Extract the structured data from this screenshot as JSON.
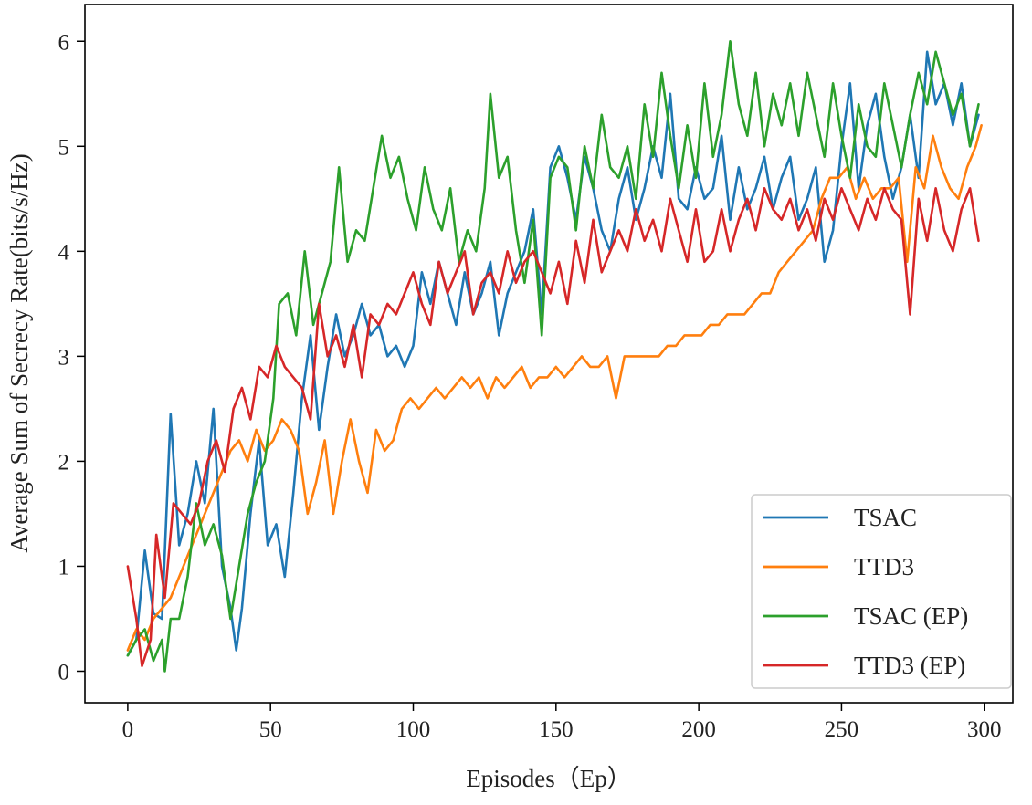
{
  "chart_data": {
    "type": "line",
    "title": "",
    "xlabel": "Episodes（Ep）",
    "ylabel": "Average Sum of Secrecy Rate(bits/s/Hz)",
    "xlim": [
      -15,
      310
    ],
    "ylim": [
      -0.3,
      6.35
    ],
    "xticks": [
      0,
      50,
      100,
      150,
      200,
      250,
      300
    ],
    "yticks": [
      0,
      1,
      2,
      3,
      4,
      5,
      6
    ],
    "grid": false,
    "legend_position": "lower right",
    "series": [
      {
        "name": "TSAC",
        "color": "#1f77b4",
        "x": [
          0,
          3,
          6,
          9,
          12,
          15,
          18,
          21,
          24,
          27,
          30,
          33,
          36,
          38,
          40,
          43,
          46,
          49,
          52,
          55,
          58,
          61,
          64,
          67,
          70,
          73,
          76,
          79,
          82,
          85,
          88,
          91,
          94,
          97,
          100,
          103,
          106,
          109,
          112,
          115,
          118,
          121,
          124,
          127,
          130,
          133,
          136,
          139,
          142,
          145,
          148,
          151,
          154,
          157,
          160,
          163,
          166,
          169,
          172,
          175,
          178,
          181,
          184,
          187,
          190,
          193,
          196,
          199,
          202,
          205,
          208,
          211,
          214,
          217,
          220,
          223,
          226,
          229,
          232,
          235,
          238,
          241,
          244,
          247,
          250,
          253,
          256,
          259,
          262,
          265,
          268,
          271,
          274,
          277,
          280,
          283,
          286,
          289,
          292,
          295,
          298
        ],
        "y": [
          0.15,
          0.3,
          1.15,
          0.55,
          0.5,
          2.45,
          1.2,
          1.5,
          2.0,
          1.6,
          2.5,
          1.0,
          0.6,
          0.2,
          0.6,
          1.5,
          2.2,
          1.2,
          1.4,
          0.9,
          1.7,
          2.6,
          3.2,
          2.3,
          2.9,
          3.4,
          3.0,
          3.2,
          3.5,
          3.2,
          3.3,
          3.0,
          3.1,
          2.9,
          3.1,
          3.8,
          3.5,
          3.9,
          3.6,
          3.3,
          3.8,
          3.4,
          3.6,
          3.9,
          3.2,
          3.6,
          3.8,
          4.0,
          4.4,
          3.4,
          4.8,
          5.0,
          4.7,
          4.3,
          4.9,
          4.6,
          4.2,
          4.0,
          4.5,
          4.8,
          4.3,
          4.6,
          5.0,
          4.7,
          5.5,
          4.5,
          4.4,
          4.8,
          4.5,
          4.6,
          5.1,
          4.3,
          4.8,
          4.4,
          4.6,
          4.9,
          4.4,
          4.7,
          4.9,
          4.3,
          4.5,
          4.8,
          3.9,
          4.2,
          5.0,
          5.6,
          4.6,
          5.2,
          5.5,
          4.9,
          4.5,
          4.8,
          5.3,
          4.7,
          5.9,
          5.4,
          5.6,
          5.2,
          5.6,
          5.0,
          5.3
        ]
      },
      {
        "name": "TTD3",
        "color": "#ff7f0e",
        "x": [
          0,
          3,
          6,
          9,
          12,
          15,
          18,
          21,
          24,
          27,
          30,
          33,
          36,
          39,
          42,
          45,
          48,
          51,
          54,
          57,
          60,
          63,
          66,
          69,
          72,
          75,
          78,
          81,
          84,
          87,
          90,
          93,
          96,
          99,
          102,
          105,
          108,
          111,
          114,
          117,
          120,
          123,
          126,
          129,
          132,
          135,
          138,
          141,
          144,
          147,
          150,
          153,
          156,
          159,
          162,
          165,
          168,
          171,
          174,
          177,
          180,
          183,
          186,
          189,
          192,
          195,
          198,
          201,
          204,
          207,
          210,
          213,
          216,
          219,
          222,
          225,
          228,
          231,
          234,
          237,
          240,
          243,
          246,
          249,
          252,
          255,
          258,
          261,
          264,
          267,
          270,
          273,
          276,
          279,
          282,
          285,
          288,
          291,
          294,
          297,
          299
        ],
        "y": [
          0.2,
          0.4,
          0.3,
          0.5,
          0.6,
          0.7,
          0.9,
          1.1,
          1.3,
          1.5,
          1.7,
          1.9,
          2.1,
          2.2,
          2.0,
          2.3,
          2.1,
          2.2,
          2.4,
          2.3,
          2.1,
          1.5,
          1.8,
          2.2,
          1.5,
          2.0,
          2.4,
          2.0,
          1.7,
          2.3,
          2.1,
          2.2,
          2.5,
          2.6,
          2.5,
          2.6,
          2.7,
          2.6,
          2.7,
          2.8,
          2.7,
          2.8,
          2.6,
          2.8,
          2.7,
          2.8,
          2.9,
          2.7,
          2.8,
          2.8,
          2.9,
          2.8,
          2.9,
          3.0,
          2.9,
          2.9,
          3.0,
          2.6,
          3.0,
          3.0,
          3.0,
          3.0,
          3.0,
          3.1,
          3.1,
          3.2,
          3.2,
          3.2,
          3.3,
          3.3,
          3.4,
          3.4,
          3.4,
          3.5,
          3.6,
          3.6,
          3.8,
          3.9,
          4.0,
          4.1,
          4.2,
          4.5,
          4.7,
          4.7,
          4.8,
          4.5,
          4.7,
          4.5,
          4.6,
          4.6,
          4.7,
          3.9,
          4.8,
          4.6,
          5.1,
          4.8,
          4.6,
          4.5,
          4.8,
          5.0,
          5.2
        ]
      },
      {
        "name": "TSAC (EP)",
        "color": "#2ca02c",
        "x": [
          0,
          3,
          6,
          9,
          12,
          13,
          15,
          18,
          21,
          24,
          27,
          30,
          33,
          36,
          39,
          42,
          45,
          48,
          51,
          53,
          56,
          59,
          62,
          65,
          68,
          71,
          74,
          77,
          80,
          83,
          86,
          89,
          92,
          95,
          98,
          101,
          104,
          107,
          110,
          113,
          116,
          119,
          122,
          125,
          127,
          130,
          133,
          136,
          139,
          142,
          145,
          148,
          151,
          154,
          157,
          160,
          163,
          166,
          169,
          172,
          175,
          178,
          181,
          184,
          187,
          190,
          193,
          196,
          199,
          202,
          205,
          208,
          211,
          214,
          217,
          220,
          223,
          226,
          229,
          232,
          235,
          238,
          241,
          244,
          247,
          250,
          253,
          256,
          259,
          262,
          265,
          268,
          271,
          274,
          277,
          280,
          283,
          286,
          289,
          292,
          295,
          298
        ],
        "y": [
          0.15,
          0.3,
          0.4,
          0.1,
          0.3,
          0.0,
          0.5,
          0.5,
          0.9,
          1.6,
          1.2,
          1.4,
          1.1,
          0.5,
          1.0,
          1.5,
          1.8,
          2.0,
          2.6,
          3.5,
          3.6,
          3.2,
          4.0,
          3.3,
          3.6,
          3.9,
          4.8,
          3.9,
          4.2,
          4.1,
          4.6,
          5.1,
          4.7,
          4.9,
          4.5,
          4.2,
          4.8,
          4.4,
          4.2,
          4.6,
          3.9,
          4.2,
          4.0,
          4.6,
          5.5,
          4.7,
          4.9,
          4.2,
          3.7,
          4.3,
          3.2,
          4.7,
          4.9,
          4.8,
          4.2,
          5.0,
          4.6,
          5.3,
          4.8,
          4.7,
          5.0,
          4.5,
          5.4,
          4.9,
          5.7,
          5.1,
          4.6,
          5.2,
          4.7,
          5.6,
          4.9,
          5.3,
          6.0,
          5.4,
          5.1,
          5.7,
          5.0,
          5.5,
          5.2,
          5.6,
          5.1,
          5.7,
          5.3,
          4.9,
          5.6,
          5.1,
          4.7,
          5.4,
          5.0,
          4.9,
          5.6,
          5.2,
          4.8,
          5.3,
          5.7,
          5.4,
          5.9,
          5.6,
          5.3,
          5.5,
          5.0,
          5.4
        ]
      },
      {
        "name": "TTD3 (EP)",
        "color": "#d62728",
        "x": [
          0,
          3,
          5,
          8,
          10,
          13,
          16,
          19,
          22,
          25,
          28,
          31,
          34,
          37,
          40,
          43,
          46,
          49,
          52,
          55,
          58,
          61,
          64,
          67,
          70,
          73,
          76,
          79,
          82,
          85,
          88,
          91,
          94,
          97,
          100,
          103,
          106,
          109,
          112,
          115,
          118,
          121,
          124,
          127,
          130,
          133,
          136,
          139,
          142,
          145,
          148,
          151,
          154,
          157,
          160,
          163,
          166,
          169,
          172,
          175,
          178,
          181,
          184,
          187,
          190,
          193,
          196,
          199,
          202,
          205,
          208,
          211,
          214,
          217,
          220,
          223,
          226,
          229,
          232,
          235,
          238,
          241,
          244,
          247,
          250,
          253,
          256,
          259,
          262,
          265,
          268,
          271,
          274,
          277,
          280,
          283,
          286,
          289,
          292,
          295,
          298
        ],
        "y": [
          1.0,
          0.5,
          0.05,
          0.3,
          1.3,
          0.7,
          1.6,
          1.5,
          1.4,
          1.6,
          2.0,
          2.2,
          1.9,
          2.5,
          2.7,
          2.4,
          2.9,
          2.8,
          3.1,
          2.9,
          2.8,
          2.7,
          2.4,
          3.5,
          3.0,
          3.2,
          2.9,
          3.3,
          2.8,
          3.4,
          3.3,
          3.5,
          3.4,
          3.6,
          3.8,
          3.5,
          3.3,
          3.9,
          3.6,
          3.8,
          4.0,
          3.4,
          3.7,
          3.8,
          3.6,
          4.0,
          3.7,
          3.9,
          4.0,
          3.8,
          3.6,
          3.9,
          3.5,
          4.1,
          3.7,
          4.3,
          3.8,
          4.0,
          4.2,
          4.0,
          4.4,
          4.1,
          4.3,
          4.0,
          4.5,
          4.2,
          3.9,
          4.4,
          3.9,
          4.0,
          4.4,
          4.0,
          4.3,
          4.5,
          4.2,
          4.6,
          4.4,
          4.3,
          4.5,
          4.2,
          4.4,
          4.1,
          4.5,
          4.3,
          4.6,
          4.4,
          4.2,
          4.5,
          4.3,
          4.6,
          4.4,
          4.3,
          3.4,
          4.5,
          4.1,
          4.6,
          4.2,
          4.0,
          4.4,
          4.6,
          4.1
        ]
      }
    ]
  }
}
